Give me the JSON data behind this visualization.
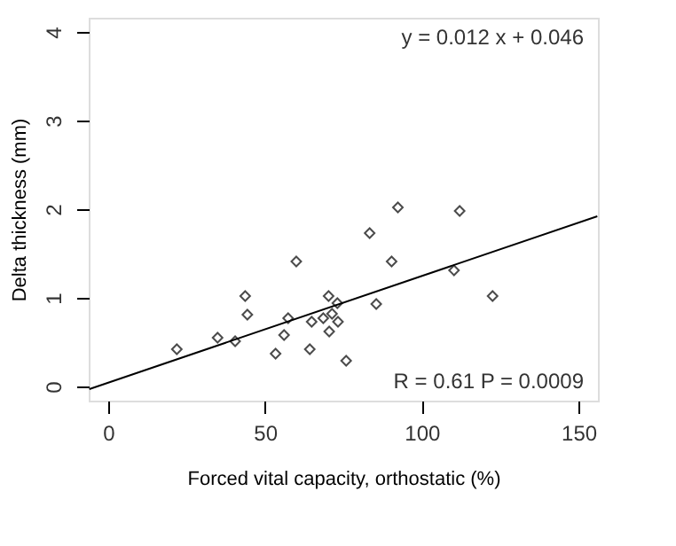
{
  "chart_data": {
    "type": "scatter",
    "xlabel": "Forced vital capacity, orthostatic (%)",
    "ylabel": "Delta thickness (mm)",
    "annotations": [
      "y =  0.012 x + 0.046",
      "R = 0.61 P = 0.0009"
    ],
    "series": [
      {
        "type": "scatter",
        "marker": "diamond",
        "color": "#000000",
        "x": [
          21.9,
          34.9,
          40.5,
          43.7,
          44.4,
          53.4,
          56.1,
          57.4,
          60,
          64.3,
          64.9,
          68.6,
          70.3,
          70.5,
          71.4,
          73.1,
          73.3,
          75.9,
          83.4,
          85.5,
          90.4,
          92.4,
          110.3,
          112.1,
          122.6
        ],
        "values": [
          0.42,
          0.55,
          0.51,
          1.02,
          0.81,
          0.37,
          0.58,
          0.77,
          1.41,
          0.42,
          0.73,
          0.77,
          1.02,
          0.62,
          0.82,
          0.94,
          0.73,
          0.29,
          1.73,
          0.93,
          1.41,
          2.02,
          1.31,
          1.98,
          1.02
        ]
      },
      {
        "type": "line",
        "line_style": "solid",
        "color": "#000000",
        "x": [
          -6,
          156
        ],
        "values": [
          -0.03,
          1.92
        ]
      }
    ],
    "xlim": [
      -6.2,
      156.2
    ],
    "ylim": [
      -0.16,
      4.16
    ],
    "xticks": [
      0,
      50,
      100,
      150
    ],
    "yticks": [
      0,
      1,
      2,
      3,
      4
    ],
    "grid": false
  }
}
